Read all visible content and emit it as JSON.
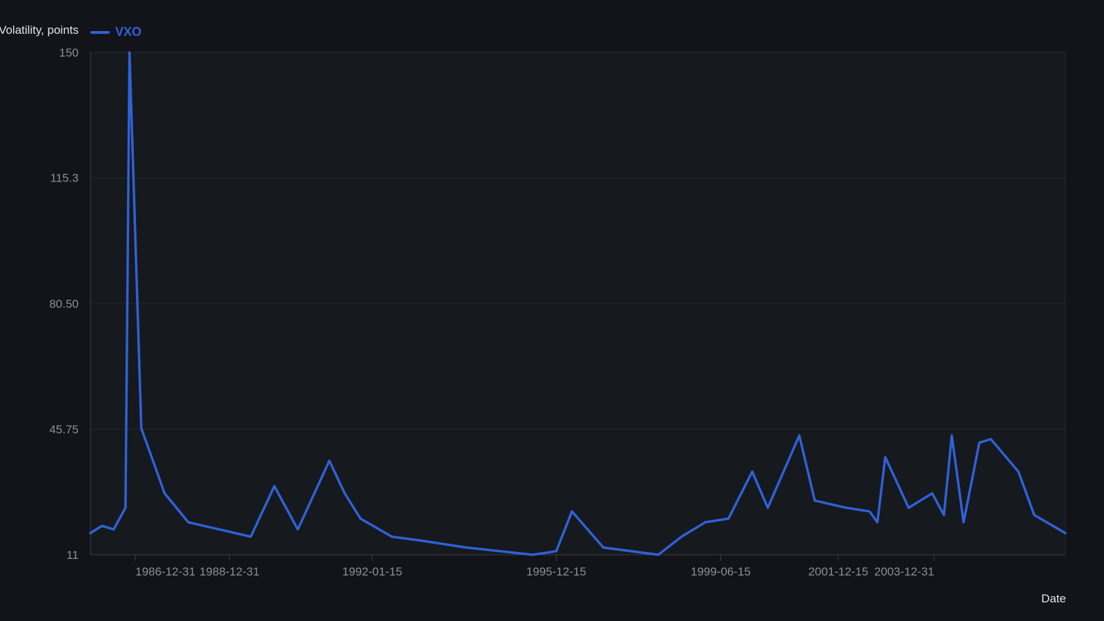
{
  "chart_data": {
    "type": "line",
    "ylabel": "Volatility, points",
    "xlabel": "Date",
    "ylim": [
      11,
      150
    ],
    "y_ticks": [
      "150",
      "115.3",
      "80.50",
      "45.75",
      "11"
    ],
    "y_tick_values": [
      150,
      115.3,
      80.5,
      45.75,
      11
    ],
    "x_ticks": [
      "1986-12-31",
      "1988-12-31",
      "1992-01-15",
      "1995-12-15",
      "1999-06-15",
      "2001-12-15",
      "2003-12-31"
    ],
    "legend_position": "top-left",
    "grid": true,
    "series": [
      {
        "name": "VXO",
        "color": "#2f62d6",
        "points": [
          [
            "1986-01-15",
            17
          ],
          [
            "1986-04-15",
            19
          ],
          [
            "1986-07-15",
            18
          ],
          [
            "1986-10-15",
            24
          ],
          [
            "1986-11-15",
            150
          ],
          [
            "1987-02-15",
            46
          ],
          [
            "1987-08-15",
            28
          ],
          [
            "1988-02-15",
            20
          ],
          [
            "1989-06-15",
            16
          ],
          [
            "1989-12-15",
            30
          ],
          [
            "1990-06-15",
            18
          ],
          [
            "1991-02-15",
            37
          ],
          [
            "1991-06-15",
            28
          ],
          [
            "1991-10-15",
            21
          ],
          [
            "1992-06-15",
            16
          ],
          [
            "1993-01-15",
            15
          ],
          [
            "1994-01-15",
            13
          ],
          [
            "1995-06-15",
            11
          ],
          [
            "1995-12-15",
            12
          ],
          [
            "1996-04-15",
            23
          ],
          [
            "1996-12-15",
            13
          ],
          [
            "1998-02-15",
            11
          ],
          [
            "1998-08-15",
            16
          ],
          [
            "1999-02-15",
            20
          ],
          [
            "1999-08-15",
            21
          ],
          [
            "2000-02-15",
            34
          ],
          [
            "2000-06-15",
            24
          ],
          [
            "2001-02-15",
            44
          ],
          [
            "2001-06-15",
            26
          ],
          [
            "2002-02-15",
            24
          ],
          [
            "2002-08-15",
            23
          ],
          [
            "2002-10-15",
            20
          ],
          [
            "2002-12-15",
            38
          ],
          [
            "2003-06-15",
            24
          ],
          [
            "2003-12-15",
            28
          ],
          [
            "2004-03-15",
            22
          ],
          [
            "2004-05-15",
            44
          ],
          [
            "2004-08-15",
            20
          ],
          [
            "2004-12-15",
            42
          ],
          [
            "2005-03-15",
            43
          ],
          [
            "2005-10-15",
            34
          ],
          [
            "2006-02-15",
            22
          ],
          [
            "2006-10-15",
            17
          ]
        ]
      }
    ]
  }
}
